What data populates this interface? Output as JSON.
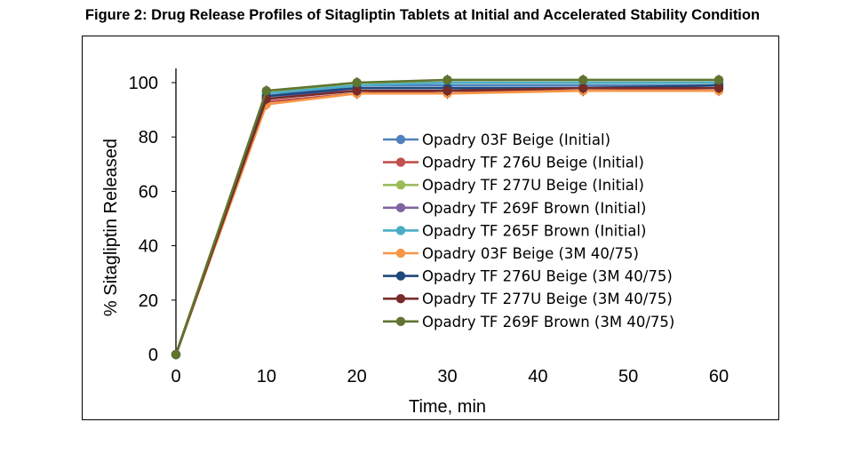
{
  "figure_title": "Figure 2: Drug Release Profiles of Sitagliptin Tablets at Initial and Accelerated Stability Condition",
  "chart_data": {
    "type": "line",
    "title": "",
    "xlabel": "Time, min",
    "ylabel": "% Sitagliptin Released",
    "xlim": [
      0,
      60
    ],
    "ylim": [
      0,
      100
    ],
    "xticks": [
      0,
      10,
      20,
      30,
      40,
      50,
      60
    ],
    "yticks": [
      0,
      20,
      40,
      60,
      80,
      100
    ],
    "grid": false,
    "legend_position": "center-right",
    "x": [
      0,
      10,
      20,
      30,
      45,
      60
    ],
    "series": [
      {
        "name": "Opadry 03F Beige (Initial)",
        "color": "#4f81bd",
        "values": [
          0,
          95,
          99,
          99,
          99,
          99
        ]
      },
      {
        "name": "Opadry TF 276U Beige (Initial)",
        "color": "#c0504d",
        "values": [
          0,
          93,
          96,
          97,
          97,
          98
        ]
      },
      {
        "name": "Opadry TF 277U Beige (Initial)",
        "color": "#9bbb59",
        "values": [
          0,
          96,
          100,
          100,
          100,
          100
        ]
      },
      {
        "name": "Opadry TF 269F Brown (Initial)",
        "color": "#8064a2",
        "values": [
          0,
          94,
          98,
          98,
          98,
          99
        ]
      },
      {
        "name": "Opadry TF 265F Brown (Initial)",
        "color": "#4bacc6",
        "values": [
          0,
          96,
          99,
          100,
          100,
          100
        ]
      },
      {
        "name": "Opadry 03F Beige (3M 40/75)",
        "color": "#f79646",
        "values": [
          0,
          92,
          96,
          96,
          97,
          97
        ]
      },
      {
        "name": "Opadry TF 276U Beige (3M 40/75)",
        "color": "#1f497d",
        "values": [
          0,
          95,
          98,
          98,
          98,
          99
        ]
      },
      {
        "name": "Opadry TF 277U Beige (3M 40/75)",
        "color": "#772c2a",
        "values": [
          0,
          94,
          97,
          97,
          98,
          98
        ]
      },
      {
        "name": "Opadry TF 269F Brown (3M 40/75)",
        "color": "#5f7530",
        "values": [
          0,
          97,
          100,
          101,
          101,
          101
        ]
      }
    ]
  }
}
